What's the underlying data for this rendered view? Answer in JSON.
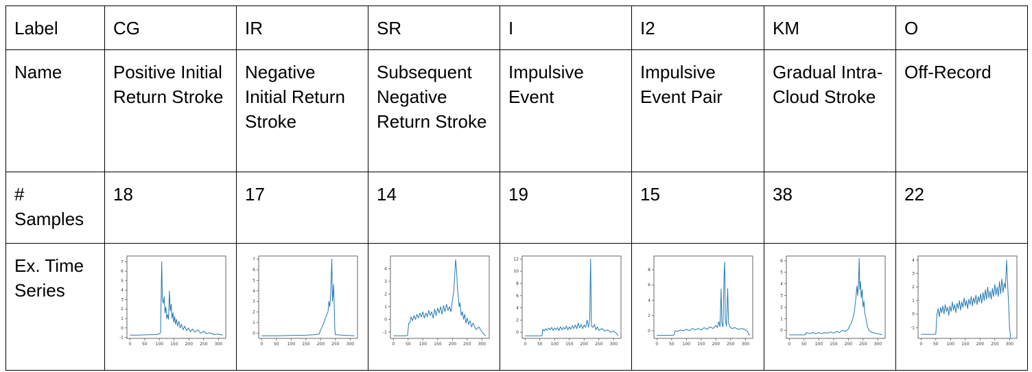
{
  "table": {
    "row_headers": [
      "Label",
      "Name",
      "# Samples",
      "Ex. Time Series"
    ],
    "columns": [
      {
        "label": "CG",
        "name": "Positive Initial Return Stroke",
        "samples": "18"
      },
      {
        "label": "IR",
        "name": "Negative Initial Return Stroke",
        "samples": "17"
      },
      {
        "label": "SR",
        "name": "Subsequent Negative Return Stroke",
        "samples": "14"
      },
      {
        "label": "I",
        "name": "Impulsive Event",
        "samples": "19"
      },
      {
        "label": "I2",
        "name": "Impulsive Event Pair",
        "samples": "15"
      },
      {
        "label": "KM",
        "name": "Gradual Intra-Cloud Stroke",
        "samples": "38"
      },
      {
        "label": "O",
        "name": "Off-Record",
        "samples": "22"
      }
    ]
  },
  "chart_data": [
    {
      "type": "line",
      "x_ticks": [
        0,
        50,
        100,
        150,
        200,
        250,
        300
      ],
      "xlim": [
        -10,
        325
      ],
      "ylim": [
        -1.1,
        7.6
      ],
      "y_ticks": [
        -1,
        0,
        1,
        2,
        3,
        4,
        5,
        6,
        7
      ],
      "points": [
        [
          0,
          -0.75
        ],
        [
          30,
          -0.75
        ],
        [
          60,
          -0.72
        ],
        [
          90,
          -0.7
        ],
        [
          100,
          -0.6
        ],
        [
          104,
          -0.5
        ],
        [
          106,
          3.5
        ],
        [
          108,
          7.0
        ],
        [
          110,
          3.0
        ],
        [
          113,
          2.6
        ],
        [
          116,
          3.3
        ],
        [
          119,
          1.6
        ],
        [
          122,
          2.2
        ],
        [
          125,
          1.0
        ],
        [
          128,
          1.4
        ],
        [
          131,
          0.9
        ],
        [
          134,
          3.9
        ],
        [
          137,
          1.8
        ],
        [
          140,
          2.5
        ],
        [
          143,
          1.0
        ],
        [
          146,
          1.6
        ],
        [
          149,
          0.6
        ],
        [
          152,
          1.2
        ],
        [
          155,
          0.4
        ],
        [
          158,
          0.9
        ],
        [
          162,
          0.2
        ],
        [
          166,
          0.7
        ],
        [
          170,
          0.0
        ],
        [
          175,
          0.4
        ],
        [
          180,
          -0.2
        ],
        [
          186,
          0.2
        ],
        [
          192,
          -0.3
        ],
        [
          198,
          0.0
        ],
        [
          205,
          -0.4
        ],
        [
          212,
          -0.1
        ],
        [
          220,
          -0.45
        ],
        [
          230,
          -0.2
        ],
        [
          240,
          -0.55
        ],
        [
          250,
          -0.35
        ],
        [
          260,
          -0.6
        ],
        [
          270,
          -0.5
        ],
        [
          285,
          -0.7
        ],
        [
          300,
          -0.65
        ],
        [
          315,
          -0.75
        ]
      ]
    },
    {
      "type": "line",
      "x_ticks": [
        0,
        50,
        100,
        150,
        200,
        250,
        300
      ],
      "xlim": [
        -10,
        325
      ],
      "ylim": [
        -0.5,
        7.3
      ],
      "y_ticks": [
        0,
        1,
        2,
        3,
        4,
        5,
        6,
        7
      ],
      "points": [
        [
          0,
          -0.25
        ],
        [
          50,
          -0.25
        ],
        [
          100,
          -0.22
        ],
        [
          150,
          -0.2
        ],
        [
          180,
          -0.15
        ],
        [
          195,
          -0.1
        ],
        [
          200,
          0.3
        ],
        [
          205,
          0.6
        ],
        [
          210,
          0.9
        ],
        [
          215,
          1.3
        ],
        [
          220,
          1.7
        ],
        [
          225,
          2.0
        ],
        [
          228,
          3.0
        ],
        [
          231,
          2.5
        ],
        [
          234,
          3.6
        ],
        [
          236,
          5.2
        ],
        [
          238,
          7.0
        ],
        [
          240,
          3.0
        ],
        [
          242,
          3.6
        ],
        [
          244,
          4.6
        ],
        [
          246,
          2.8
        ],
        [
          248,
          0.4
        ],
        [
          250,
          -0.15
        ],
        [
          275,
          -0.2
        ],
        [
          315,
          -0.25
        ]
      ]
    },
    {
      "type": "line",
      "x_ticks": [
        0,
        50,
        100,
        150,
        200,
        250,
        300
      ],
      "xlim": [
        -10,
        325
      ],
      "ylim": [
        -1.5,
        5.0
      ],
      "y_ticks": [
        -1,
        0,
        1,
        2,
        3,
        4
      ],
      "points": [
        [
          0,
          -1.3
        ],
        [
          40,
          -1.3
        ],
        [
          48,
          -1.28
        ],
        [
          52,
          -0.3
        ],
        [
          56,
          -0.25
        ],
        [
          60,
          0.2
        ],
        [
          65,
          -0.1
        ],
        [
          70,
          0.3
        ],
        [
          75,
          0.0
        ],
        [
          80,
          0.4
        ],
        [
          85,
          0.1
        ],
        [
          90,
          0.5
        ],
        [
          95,
          0.2
        ],
        [
          100,
          0.6
        ],
        [
          105,
          0.1
        ],
        [
          110,
          0.5
        ],
        [
          115,
          0.2
        ],
        [
          120,
          0.7
        ],
        [
          125,
          0.3
        ],
        [
          130,
          0.6
        ],
        [
          135,
          0.1
        ],
        [
          140,
          0.8
        ],
        [
          145,
          0.3
        ],
        [
          150,
          0.9
        ],
        [
          155,
          0.5
        ],
        [
          160,
          1.0
        ],
        [
          165,
          0.4
        ],
        [
          170,
          1.1
        ],
        [
          175,
          0.6
        ],
        [
          180,
          1.2
        ],
        [
          185,
          0.7
        ],
        [
          190,
          1.0
        ],
        [
          195,
          0.6
        ],
        [
          200,
          1.5
        ],
        [
          205,
          2.2
        ],
        [
          208,
          3.5
        ],
        [
          211,
          4.7
        ],
        [
          214,
          4.0
        ],
        [
          217,
          2.5
        ],
        [
          220,
          1.8
        ],
        [
          223,
          1.0
        ],
        [
          226,
          1.3
        ],
        [
          230,
          0.3
        ],
        [
          234,
          0.6
        ],
        [
          238,
          0.0
        ],
        [
          242,
          0.4
        ],
        [
          246,
          -0.3
        ],
        [
          250,
          0.1
        ],
        [
          255,
          -0.4
        ],
        [
          260,
          -0.1
        ],
        [
          265,
          -0.6
        ],
        [
          270,
          -0.3
        ],
        [
          280,
          -0.8
        ],
        [
          290,
          -0.6
        ],
        [
          300,
          -1.0
        ],
        [
          308,
          -1.2
        ],
        [
          313,
          -1.3
        ]
      ]
    },
    {
      "type": "line",
      "x_ticks": [
        0,
        50,
        100,
        150,
        200,
        250,
        300
      ],
      "xlim": [
        -10,
        325
      ],
      "ylim": [
        -1.0,
        12.5
      ],
      "y_ticks": [
        0,
        2,
        4,
        6,
        8,
        10,
        12
      ],
      "points": [
        [
          0,
          -0.6
        ],
        [
          50,
          -0.6
        ],
        [
          57,
          -0.58
        ],
        [
          60,
          0.5
        ],
        [
          65,
          0.2
        ],
        [
          70,
          0.6
        ],
        [
          75,
          0.3
        ],
        [
          80,
          0.7
        ],
        [
          85,
          0.4
        ],
        [
          90,
          0.8
        ],
        [
          95,
          0.3
        ],
        [
          100,
          0.7
        ],
        [
          105,
          0.4
        ],
        [
          110,
          0.8
        ],
        [
          115,
          0.3
        ],
        [
          120,
          0.9
        ],
        [
          125,
          0.4
        ],
        [
          130,
          0.8
        ],
        [
          135,
          0.5
        ],
        [
          140,
          1.0
        ],
        [
          145,
          0.4
        ],
        [
          150,
          0.9
        ],
        [
          155,
          0.5
        ],
        [
          160,
          1.1
        ],
        [
          165,
          0.6
        ],
        [
          170,
          1.2
        ],
        [
          175,
          0.6
        ],
        [
          180,
          1.5
        ],
        [
          185,
          0.7
        ],
        [
          190,
          1.3
        ],
        [
          195,
          0.6
        ],
        [
          200,
          1.2
        ],
        [
          205,
          0.8
        ],
        [
          210,
          2.0
        ],
        [
          215,
          0.8
        ],
        [
          219,
          2.2
        ],
        [
          222,
          12.0
        ],
        [
          225,
          1.0
        ],
        [
          230,
          0.8
        ],
        [
          235,
          1.3
        ],
        [
          240,
          0.4
        ],
        [
          245,
          0.9
        ],
        [
          250,
          0.3
        ],
        [
          260,
          0.6
        ],
        [
          270,
          0.2
        ],
        [
          280,
          0.4
        ],
        [
          290,
          0.0
        ],
        [
          300,
          0.2
        ],
        [
          310,
          -0.2
        ],
        [
          315,
          -0.6
        ]
      ]
    },
    {
      "type": "line",
      "x_ticks": [
        0,
        50,
        100,
        150,
        200,
        250,
        300
      ],
      "xlim": [
        -10,
        325
      ],
      "ylim": [
        -1.0,
        9.8
      ],
      "y_ticks": [
        0,
        2,
        4,
        6,
        8
      ],
      "points": [
        [
          0,
          -0.6
        ],
        [
          50,
          -0.6
        ],
        [
          58,
          -0.58
        ],
        [
          62,
          0.0
        ],
        [
          70,
          -0.1
        ],
        [
          80,
          0.1
        ],
        [
          90,
          0.0
        ],
        [
          100,
          0.2
        ],
        [
          110,
          0.0
        ],
        [
          120,
          0.3
        ],
        [
          130,
          0.1
        ],
        [
          140,
          0.3
        ],
        [
          150,
          0.1
        ],
        [
          160,
          0.4
        ],
        [
          170,
          0.2
        ],
        [
          180,
          0.5
        ],
        [
          190,
          0.3
        ],
        [
          200,
          0.7
        ],
        [
          205,
          0.4
        ],
        [
          210,
          1.2
        ],
        [
          214,
          0.5
        ],
        [
          218,
          5.5
        ],
        [
          220,
          1.0
        ],
        [
          224,
          0.5
        ],
        [
          228,
          7.5
        ],
        [
          230,
          9.0
        ],
        [
          232,
          1.5
        ],
        [
          236,
          0.6
        ],
        [
          240,
          5.5
        ],
        [
          243,
          1.0
        ],
        [
          248,
          0.5
        ],
        [
          255,
          0.3
        ],
        [
          265,
          0.4
        ],
        [
          275,
          0.2
        ],
        [
          290,
          0.3
        ],
        [
          305,
          0.0
        ],
        [
          315,
          -0.6
        ]
      ]
    },
    {
      "type": "line",
      "x_ticks": [
        0,
        50,
        100,
        150,
        200,
        250,
        300
      ],
      "xlim": [
        -10,
        325
      ],
      "ylim": [
        -0.7,
        6.4
      ],
      "y_ticks": [
        0,
        1,
        2,
        3,
        4,
        5,
        6
      ],
      "points": [
        [
          0,
          -0.4
        ],
        [
          50,
          -0.4
        ],
        [
          55,
          -0.38
        ],
        [
          58,
          -0.2
        ],
        [
          70,
          -0.3
        ],
        [
          80,
          -0.2
        ],
        [
          90,
          -0.3
        ],
        [
          100,
          -0.2
        ],
        [
          110,
          -0.3
        ],
        [
          120,
          -0.2
        ],
        [
          130,
          -0.25
        ],
        [
          140,
          -0.15
        ],
        [
          150,
          -0.25
        ],
        [
          160,
          -0.1
        ],
        [
          170,
          -0.2
        ],
        [
          180,
          0.0
        ],
        [
          190,
          -0.1
        ],
        [
          200,
          0.1
        ],
        [
          205,
          0.4
        ],
        [
          210,
          0.6
        ],
        [
          215,
          1.0
        ],
        [
          220,
          1.5
        ],
        [
          223,
          2.2
        ],
        [
          226,
          2.8
        ],
        [
          229,
          3.8
        ],
        [
          232,
          3.0
        ],
        [
          235,
          4.3
        ],
        [
          237,
          6.2
        ],
        [
          239,
          3.5
        ],
        [
          241,
          4.2
        ],
        [
          244,
          2.8
        ],
        [
          247,
          3.5
        ],
        [
          250,
          2.0
        ],
        [
          253,
          2.5
        ],
        [
          256,
          1.5
        ],
        [
          260,
          1.0
        ],
        [
          265,
          0.3
        ],
        [
          270,
          0.0
        ],
        [
          280,
          -0.2
        ],
        [
          300,
          -0.3
        ],
        [
          315,
          -0.4
        ]
      ]
    },
    {
      "type": "line",
      "x_ticks": [
        0,
        50,
        100,
        150,
        200,
        250,
        300
      ],
      "xlim": [
        -10,
        325
      ],
      "ylim": [
        -1.8,
        4.3
      ],
      "y_ticks": [
        -1,
        0,
        1,
        2,
        3,
        4
      ],
      "points": [
        [
          0,
          -1.5
        ],
        [
          45,
          -1.5
        ],
        [
          50,
          -1.48
        ],
        [
          54,
          0.0
        ],
        [
          58,
          0.4
        ],
        [
          62,
          -0.2
        ],
        [
          66,
          0.5
        ],
        [
          70,
          0.1
        ],
        [
          74,
          0.6
        ],
        [
          78,
          0.0
        ],
        [
          82,
          0.7
        ],
        [
          86,
          0.2
        ],
        [
          90,
          0.5
        ],
        [
          94,
          -0.1
        ],
        [
          98,
          0.6
        ],
        [
          102,
          0.2
        ],
        [
          106,
          0.9
        ],
        [
          110,
          0.3
        ],
        [
          114,
          0.7
        ],
        [
          118,
          0.1
        ],
        [
          122,
          0.8
        ],
        [
          126,
          0.4
        ],
        [
          130,
          1.0
        ],
        [
          134,
          0.3
        ],
        [
          138,
          0.9
        ],
        [
          142,
          0.5
        ],
        [
          146,
          1.2
        ],
        [
          150,
          0.6
        ],
        [
          154,
          1.0
        ],
        [
          158,
          0.4
        ],
        [
          162,
          1.1
        ],
        [
          166,
          0.7
        ],
        [
          170,
          1.3
        ],
        [
          174,
          0.6
        ],
        [
          178,
          1.2
        ],
        [
          182,
          0.8
        ],
        [
          186,
          1.4
        ],
        [
          190,
          0.7
        ],
        [
          194,
          1.3
        ],
        [
          198,
          0.9
        ],
        [
          202,
          1.5
        ],
        [
          206,
          0.8
        ],
        [
          210,
          1.6
        ],
        [
          214,
          1.0
        ],
        [
          218,
          1.8
        ],
        [
          222,
          1.1
        ],
        [
          226,
          2.0
        ],
        [
          230,
          1.2
        ],
        [
          234,
          1.7
        ],
        [
          238,
          1.1
        ],
        [
          242,
          1.9
        ],
        [
          246,
          1.3
        ],
        [
          250,
          2.2
        ],
        [
          254,
          1.4
        ],
        [
          258,
          2.0
        ],
        [
          262,
          1.3
        ],
        [
          266,
          2.4
        ],
        [
          270,
          1.5
        ],
        [
          274,
          2.6
        ],
        [
          278,
          1.6
        ],
        [
          282,
          2.3
        ],
        [
          286,
          1.9
        ],
        [
          290,
          4.0
        ],
        [
          293,
          2.5
        ],
        [
          296,
          1.2
        ],
        [
          300,
          -1.0
        ],
        [
          304,
          -1.8
        ]
      ]
    }
  ]
}
